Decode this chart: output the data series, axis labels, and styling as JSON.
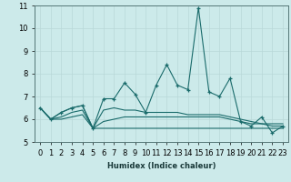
{
  "xlabel": "Humidex (Indice chaleur)",
  "x": [
    0,
    1,
    2,
    3,
    4,
    5,
    6,
    7,
    8,
    9,
    10,
    11,
    12,
    13,
    14,
    15,
    16,
    17,
    18,
    19,
    20,
    21,
    22,
    23
  ],
  "line1": [
    6.5,
    6.0,
    6.3,
    6.5,
    6.6,
    5.6,
    6.9,
    6.9,
    7.6,
    7.1,
    6.3,
    7.5,
    8.4,
    7.5,
    7.3,
    10.9,
    7.2,
    7.0,
    7.8,
    5.9,
    5.7,
    6.1,
    5.4,
    5.7
  ],
  "line2": [
    6.5,
    6.0,
    6.3,
    6.5,
    6.6,
    5.6,
    6.4,
    6.5,
    6.4,
    6.4,
    6.3,
    6.3,
    6.3,
    6.3,
    6.2,
    6.2,
    6.2,
    6.2,
    6.1,
    6.0,
    5.9,
    5.8,
    5.8,
    5.8
  ],
  "line3": [
    6.5,
    6.0,
    6.1,
    6.3,
    6.4,
    5.6,
    5.9,
    6.0,
    6.1,
    6.1,
    6.1,
    6.1,
    6.1,
    6.1,
    6.1,
    6.1,
    6.1,
    6.1,
    6.0,
    5.9,
    5.8,
    5.8,
    5.7,
    5.7
  ],
  "line4": [
    6.5,
    6.0,
    6.0,
    6.1,
    6.2,
    5.6,
    5.6,
    5.6,
    5.6,
    5.6,
    5.6,
    5.6,
    5.6,
    5.6,
    5.6,
    5.6,
    5.6,
    5.6,
    5.6,
    5.6,
    5.6,
    5.6,
    5.6,
    5.6
  ],
  "line_color": "#1a6b6b",
  "bg_color": "#cceaea",
  "grid_color": "#b8d8d8",
  "ylim": [
    5,
    11
  ],
  "yticks": [
    5,
    6,
    7,
    8,
    9,
    10,
    11
  ],
  "tick_fontsize": 6,
  "xlabel_fontsize": 6
}
